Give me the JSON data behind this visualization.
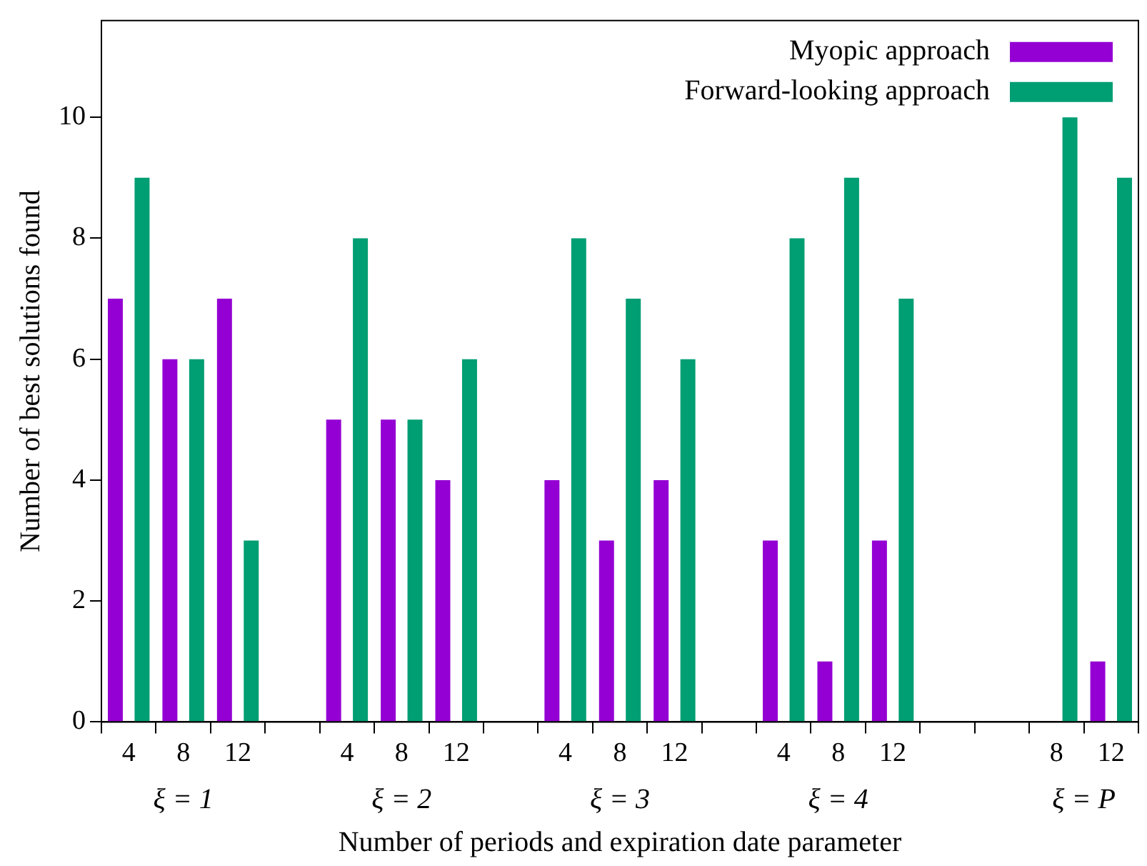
{
  "chart_data": {
    "type": "bar",
    "xlabel": "Number of periods and expiration date parameter",
    "ylabel": "Number of best solutions found",
    "categories": [
      "4",
      "8",
      "12",
      null,
      "4",
      "8",
      "12",
      null,
      "4",
      "8",
      "12",
      null,
      "4",
      "8",
      "12",
      null,
      null,
      "8",
      "12"
    ],
    "series": [
      {
        "name": "Myopic approach",
        "color": "#9400d3",
        "values": [
          7,
          6,
          7,
          null,
          5,
          5,
          4,
          null,
          4,
          3,
          4,
          null,
          3,
          1,
          3,
          null,
          null,
          null,
          1
        ]
      },
      {
        "name": "Forward-looking approach",
        "color": "#009e73",
        "values": [
          9,
          6,
          3,
          null,
          8,
          5,
          6,
          null,
          8,
          7,
          6,
          null,
          8,
          9,
          7,
          null,
          null,
          10,
          9
        ]
      }
    ],
    "annotations": [
      "ξ = 1",
      "ξ = 2",
      "ξ = 3",
      "ξ = 4",
      "ξ = P"
    ],
    "ylim": [
      0,
      11.6
    ],
    "yticks": [
      0,
      2,
      4,
      6,
      8,
      10
    ],
    "grid": false,
    "legend": "top right"
  }
}
